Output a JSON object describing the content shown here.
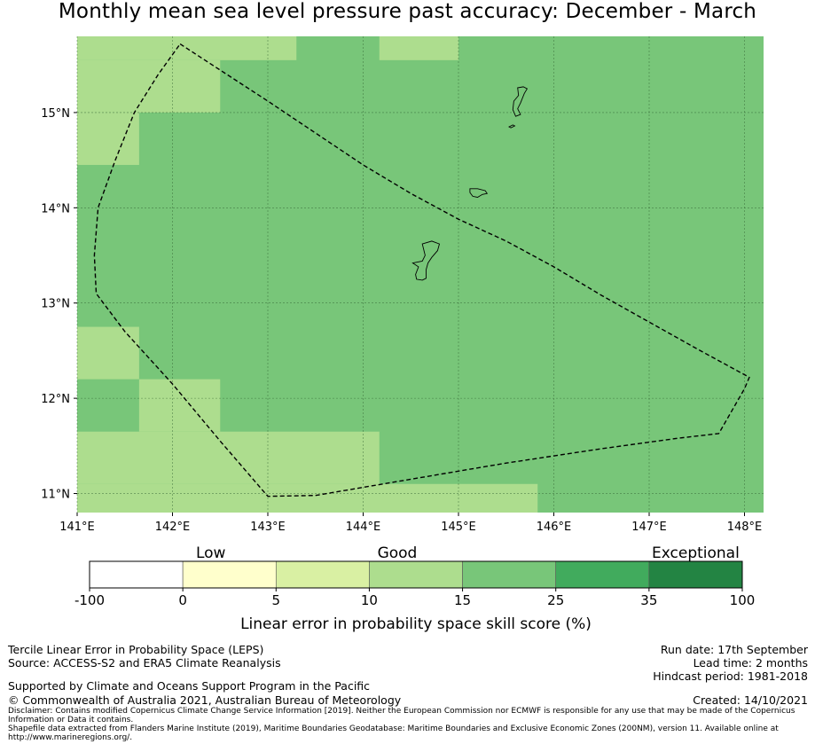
{
  "title": "Monthly mean sea level pressure past accuracy: December - March",
  "colors": {
    "ocean_good": "#78c679",
    "ocean_light": "#addd8e",
    "grid": "#2f5f2f",
    "boundary": "#000000"
  },
  "map": {
    "lon_range": [
      141,
      148.2
    ],
    "lat_range": [
      10.8,
      15.8
    ],
    "lon_ticks": [
      {
        "value": 141,
        "label": "141°E"
      },
      {
        "value": 142,
        "label": "142°E"
      },
      {
        "value": 143,
        "label": "143°E"
      },
      {
        "value": 144,
        "label": "144°E"
      },
      {
        "value": 145,
        "label": "145°E"
      },
      {
        "value": 146,
        "label": "146°E"
      },
      {
        "value": 147,
        "label": "147°E"
      },
      {
        "value": 148,
        "label": "148°E"
      }
    ],
    "lat_ticks": [
      {
        "value": 15,
        "label": "15°N"
      },
      {
        "value": 14,
        "label": "14°N"
      },
      {
        "value": 13,
        "label": "13°N"
      },
      {
        "value": 12,
        "label": "12°N"
      },
      {
        "value": 11,
        "label": "11°N"
      }
    ],
    "light_cells": [
      {
        "lon": [
          141.0,
          143.3
        ],
        "lat": [
          15.55,
          15.8
        ]
      },
      {
        "lon": [
          144.17,
          145.0
        ],
        "lat": [
          15.55,
          15.8
        ]
      },
      {
        "lon": [
          141.0,
          142.5
        ],
        "lat": [
          15.0,
          15.55
        ]
      },
      {
        "lon": [
          141.0,
          141.65
        ],
        "lat": [
          14.45,
          15.0
        ]
      },
      {
        "lon": [
          141.0,
          141.65
        ],
        "lat": [
          12.2,
          12.75
        ]
      },
      {
        "lon": [
          141.65,
          142.5
        ],
        "lat": [
          11.65,
          12.2
        ]
      },
      {
        "lon": [
          141.0,
          144.17
        ],
        "lat": [
          11.1,
          11.65
        ]
      },
      {
        "lon": [
          141.0,
          145.83
        ],
        "lat": [
          10.8,
          11.1
        ]
      }
    ],
    "eez_boundary": [
      [
        142.08,
        15.72
      ],
      [
        143.0,
        15.12
      ],
      [
        144.0,
        14.45
      ],
      [
        144.5,
        14.15
      ],
      [
        145.0,
        13.88
      ],
      [
        145.5,
        13.65
      ],
      [
        146.0,
        13.38
      ],
      [
        146.5,
        13.08
      ],
      [
        147.0,
        12.8
      ],
      [
        147.5,
        12.52
      ],
      [
        148.05,
        12.22
      ],
      [
        148.0,
        12.1
      ],
      [
        147.73,
        11.63
      ],
      [
        147.3,
        11.58
      ],
      [
        146.5,
        11.47
      ],
      [
        145.5,
        11.32
      ],
      [
        144.5,
        11.15
      ],
      [
        143.5,
        10.98
      ],
      [
        143.0,
        10.97
      ],
      [
        142.5,
        11.55
      ],
      [
        142.0,
        12.15
      ],
      [
        141.5,
        12.7
      ],
      [
        141.2,
        13.1
      ],
      [
        141.18,
        13.5
      ],
      [
        141.22,
        14.0
      ],
      [
        141.4,
        14.5
      ],
      [
        141.6,
        15.0
      ],
      [
        141.85,
        15.4
      ],
      [
        142.08,
        15.72
      ]
    ],
    "islands": [
      [
        [
          144.62,
          13.62
        ],
        [
          144.72,
          13.65
        ],
        [
          144.8,
          13.62
        ],
        [
          144.78,
          13.55
        ],
        [
          144.72,
          13.48
        ],
        [
          144.68,
          13.42
        ],
        [
          144.66,
          13.35
        ],
        [
          144.66,
          13.26
        ],
        [
          144.62,
          13.24
        ],
        [
          144.56,
          13.25
        ],
        [
          144.55,
          13.3
        ],
        [
          144.58,
          13.38
        ],
        [
          144.52,
          13.42
        ],
        [
          144.62,
          13.44
        ],
        [
          144.65,
          13.5
        ]
      ],
      [
        [
          145.12,
          14.2
        ],
        [
          145.2,
          14.2
        ],
        [
          145.28,
          14.18
        ],
        [
          145.3,
          14.15
        ],
        [
          145.25,
          14.14
        ],
        [
          145.2,
          14.11
        ],
        [
          145.15,
          14.12
        ],
        [
          145.12,
          14.16
        ]
      ],
      [
        [
          145.62,
          15.26
        ],
        [
          145.68,
          15.27
        ],
        [
          145.72,
          15.25
        ],
        [
          145.69,
          15.2
        ],
        [
          145.65,
          15.1
        ],
        [
          145.62,
          15.04
        ],
        [
          145.65,
          14.98
        ],
        [
          145.6,
          14.96
        ],
        [
          145.57,
          15.03
        ],
        [
          145.58,
          15.12
        ],
        [
          145.63,
          15.18
        ]
      ],
      [
        [
          145.53,
          14.85
        ],
        [
          145.57,
          14.87
        ],
        [
          145.59,
          14.86
        ],
        [
          145.55,
          14.84
        ]
      ]
    ]
  },
  "colorbar": {
    "categories": [
      "Low",
      "Good",
      "Exceptional"
    ],
    "bins": [
      {
        "color": "#ffffff"
      },
      {
        "color": "#ffffcc"
      },
      {
        "color": "#d9f0a3"
      },
      {
        "color": "#addd8e"
      },
      {
        "color": "#78c679"
      },
      {
        "color": "#41ab5d"
      },
      {
        "color": "#238443"
      }
    ],
    "ticks": [
      "-100",
      "0",
      "5",
      "10",
      "15",
      "25",
      "35",
      "100"
    ],
    "label": "Linear error in probability space skill score (%)"
  },
  "footer": {
    "method": "Tercile Linear Error in Probability Space (LEPS)",
    "source": "Source: ACCESS-S2 and ERA5 Climate Reanalysis",
    "support": "Supported by Climate and Oceans Support Program in the Pacific",
    "copyright": "© Commonwealth of Australia 2021, Australian Bureau of Meteorology",
    "disclaimer": "Disclaimer: Contains modified Copernicus Climate Change Service Information [2019]. Neither the European Commission nor ECMWF is responsible for any use that may be made of the Copernicus Information or Data it contains.",
    "shapefile": "Shapefile data extracted from Flanders Marine Institute (2019), Maritime Boundaries Geodatabase: Maritime Boundaries and Exclusive Economic Zones (200NM), version 11. Available online at http://www.marineregions.org/.",
    "run_date": "Run date: 17th September",
    "lead_time": "Lead time: 2 months",
    "hindcast": "Hindcast period: 1981-2018",
    "created": "Created: 14/10/2021"
  }
}
